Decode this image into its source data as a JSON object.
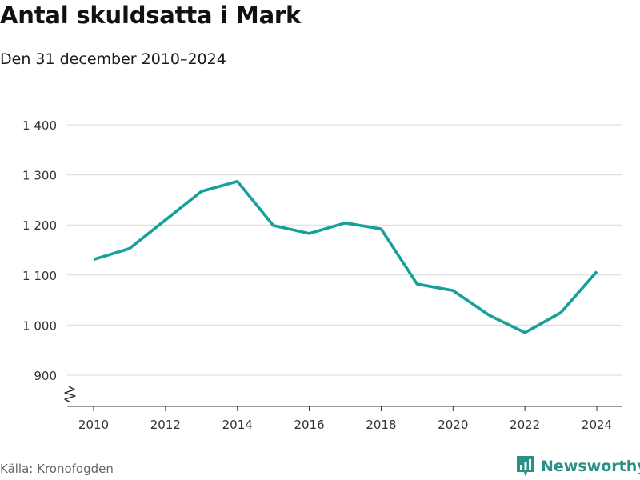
{
  "title": "Antal skuldsatta i Mark",
  "subtitle": "Den 31 december 2010–2024",
  "source": "Källa: Kronofogden",
  "brand": {
    "name": "Newsworthy",
    "logo_icon": "newsworthy-logo-icon",
    "color": "#2a8f86"
  },
  "colors": {
    "line": "#16a09a",
    "grid": "#d9d9d9",
    "axis": "#333333",
    "text": "#333333"
  },
  "chart_data": {
    "type": "line",
    "title": "Antal skuldsatta i Mark",
    "subtitle": "Den 31 december 2010–2024",
    "xlabel": "",
    "ylabel": "",
    "x": [
      2010,
      2011,
      2012,
      2013,
      2014,
      2015,
      2016,
      2017,
      2018,
      2019,
      2020,
      2021,
      2022,
      2023,
      2024
    ],
    "series": [
      {
        "name": "Antal skuldsatta",
        "values": [
          1131,
          1153,
          1210,
          1267,
          1287,
          1199,
          1183,
          1204,
          1192,
          1082,
          1069,
          1020,
          985,
          1025,
          1107
        ]
      }
    ],
    "ylim": [
      870,
      1400
    ],
    "xlim": [
      2009.2,
      2024.7
    ],
    "yticks": [
      900,
      1000,
      1100,
      1200,
      1300,
      1400
    ],
    "ytick_labels": [
      "900",
      "1 000",
      "1 100",
      "1 200",
      "1 300",
      "1 400"
    ],
    "xticks": [
      2010,
      2012,
      2014,
      2016,
      2018,
      2020,
      2022,
      2024
    ],
    "xtick_labels": [
      "2010",
      "2012",
      "2014",
      "2016",
      "2018",
      "2020",
      "2022",
      "2024"
    ],
    "y_axis_break": true,
    "grid": true,
    "legend": "none"
  }
}
